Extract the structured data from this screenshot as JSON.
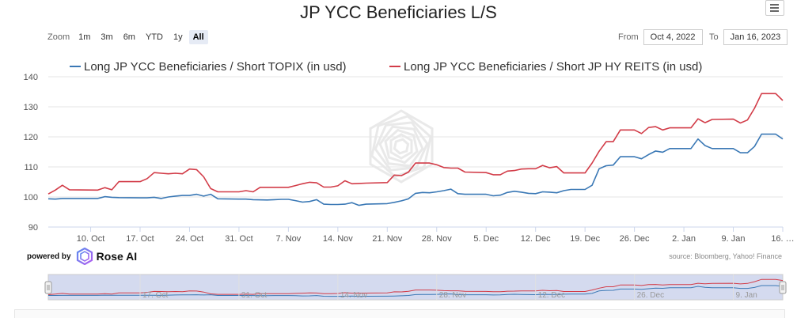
{
  "header": {
    "title": "JP YCC Beneficiaries L/S",
    "menu_icon": "hamburger-menu-icon"
  },
  "zoom": {
    "label": "Zoom",
    "buttons": [
      "1m",
      "3m",
      "6m",
      "YTD",
      "1y",
      "All"
    ],
    "active": "All"
  },
  "range": {
    "from_label": "From",
    "from_value": "Oct 4, 2022",
    "to_label": "To",
    "to_value": "Jan 16, 2023"
  },
  "footer": {
    "powered_by": "powered by",
    "brand": "Rose AI",
    "source": "source: Bloomberg, Yahoo! Finance"
  },
  "colors": {
    "blue": "#3a78b5",
    "red": "#d23c48",
    "grid": "#e6e6e6",
    "navigator_mask": "#ccd3ec"
  },
  "chart_data": {
    "type": "line",
    "title": "JP YCC Beneficiaries L/S",
    "ylim": [
      90,
      140
    ],
    "yticks": [
      90,
      100,
      110,
      120,
      130,
      140
    ],
    "xlim": [
      "2022-10-04",
      "2023-01-16"
    ],
    "xticks": [
      {
        "date": "2022-10-10",
        "label": "10. Oct"
      },
      {
        "date": "2022-10-17",
        "label": "17. Oct"
      },
      {
        "date": "2022-10-24",
        "label": "24. Oct"
      },
      {
        "date": "2022-10-31",
        "label": "31. Oct"
      },
      {
        "date": "2022-11-07",
        "label": "7. Nov"
      },
      {
        "date": "2022-11-14",
        "label": "14. Nov"
      },
      {
        "date": "2022-11-21",
        "label": "21. Nov"
      },
      {
        "date": "2022-11-28",
        "label": "28. Nov"
      },
      {
        "date": "2022-12-05",
        "label": "5. Dec"
      },
      {
        "date": "2022-12-12",
        "label": "12. Dec"
      },
      {
        "date": "2022-12-19",
        "label": "19. Dec"
      },
      {
        "date": "2022-12-26",
        "label": "26. Dec"
      },
      {
        "date": "2023-01-02",
        "label": "2. Jan"
      },
      {
        "date": "2023-01-09",
        "label": "9. Jan"
      },
      {
        "date": "2023-01-16",
        "label": "16. …"
      }
    ],
    "navigator_ticks": [
      "17. Oct",
      "31. Oct",
      "14. Nov",
      "28. Nov",
      "12. Dec",
      "26. Dec",
      "9. Jan"
    ],
    "legend_position": "top-center",
    "series": [
      {
        "name": "Long JP YCC Beneficiaries / Short TOPIX (in usd)",
        "color": "#3a78b5",
        "points": [
          [
            "2022-10-04",
            99.4
          ],
          [
            "2022-10-05",
            99.3
          ],
          [
            "2022-10-06",
            99.5
          ],
          [
            "2022-10-07",
            99.5
          ],
          [
            "2022-10-11",
            99.5
          ],
          [
            "2022-10-12",
            100.1
          ],
          [
            "2022-10-13",
            99.9
          ],
          [
            "2022-10-14",
            99.8
          ],
          [
            "2022-10-17",
            99.7
          ],
          [
            "2022-10-18",
            99.7
          ],
          [
            "2022-10-19",
            99.9
          ],
          [
            "2022-10-20",
            99.5
          ],
          [
            "2022-10-21",
            100.0
          ],
          [
            "2022-10-22",
            100.3
          ],
          [
            "2022-10-23",
            100.5
          ],
          [
            "2022-10-24",
            100.5
          ],
          [
            "2022-10-25",
            100.9
          ],
          [
            "2022-10-26",
            100.3
          ],
          [
            "2022-10-27",
            100.9
          ],
          [
            "2022-10-28",
            99.4
          ],
          [
            "2022-10-31",
            99.3
          ],
          [
            "2022-11-01",
            99.3
          ],
          [
            "2022-11-02",
            99.1
          ],
          [
            "2022-11-04",
            99.0
          ],
          [
            "2022-11-05",
            99.1
          ],
          [
            "2022-11-06",
            99.2
          ],
          [
            "2022-11-07",
            99.2
          ],
          [
            "2022-11-08",
            98.8
          ],
          [
            "2022-11-09",
            98.3
          ],
          [
            "2022-11-10",
            98.5
          ],
          [
            "2022-11-11",
            99.1
          ],
          [
            "2022-11-12",
            97.6
          ],
          [
            "2022-11-13",
            97.5
          ],
          [
            "2022-11-14",
            97.5
          ],
          [
            "2022-11-15",
            97.6
          ],
          [
            "2022-11-16",
            98.1
          ],
          [
            "2022-11-17",
            97.2
          ],
          [
            "2022-11-18",
            97.6
          ],
          [
            "2022-11-21",
            97.8
          ],
          [
            "2022-11-22",
            98.2
          ],
          [
            "2022-11-23",
            98.7
          ],
          [
            "2022-11-24",
            99.4
          ],
          [
            "2022-11-25",
            101.2
          ],
          [
            "2022-11-26",
            101.5
          ],
          [
            "2022-11-27",
            101.4
          ],
          [
            "2022-11-28",
            101.7
          ],
          [
            "2022-11-29",
            102.1
          ],
          [
            "2022-11-30",
            102.6
          ],
          [
            "2022-12-01",
            101.1
          ],
          [
            "2022-12-02",
            100.9
          ],
          [
            "2022-12-05",
            100.9
          ],
          [
            "2022-12-06",
            100.4
          ],
          [
            "2022-12-07",
            100.6
          ],
          [
            "2022-12-08",
            101.5
          ],
          [
            "2022-12-09",
            101.9
          ],
          [
            "2022-12-10",
            101.6
          ],
          [
            "2022-12-11",
            101.2
          ],
          [
            "2022-12-12",
            101.1
          ],
          [
            "2022-12-13",
            101.7
          ],
          [
            "2022-12-14",
            101.6
          ],
          [
            "2022-12-15",
            101.4
          ],
          [
            "2022-12-16",
            102.1
          ],
          [
            "2022-12-17",
            102.5
          ],
          [
            "2022-12-19",
            102.5
          ],
          [
            "2022-12-20",
            103.9
          ],
          [
            "2022-12-21",
            109.4
          ],
          [
            "2022-12-22",
            110.4
          ],
          [
            "2022-12-23",
            110.6
          ],
          [
            "2022-12-24",
            113.4
          ],
          [
            "2022-12-26",
            113.4
          ],
          [
            "2022-12-27",
            112.7
          ],
          [
            "2022-12-28",
            114.1
          ],
          [
            "2022-12-29",
            115.3
          ],
          [
            "2022-12-30",
            114.9
          ],
          [
            "2022-12-31",
            116.1
          ],
          [
            "2023-01-03",
            116.1
          ],
          [
            "2023-01-04",
            119.3
          ],
          [
            "2023-01-05",
            117.1
          ],
          [
            "2023-01-06",
            116.1
          ],
          [
            "2023-01-09",
            116.1
          ],
          [
            "2023-01-10",
            114.7
          ],
          [
            "2023-01-11",
            114.7
          ],
          [
            "2023-01-12",
            116.8
          ],
          [
            "2023-01-13",
            120.9
          ],
          [
            "2023-01-15",
            120.9
          ],
          [
            "2023-01-16",
            119.3
          ]
        ]
      },
      {
        "name": "Long JP YCC Beneficiaries / Short JP HY REITS (in usd)",
        "color": "#d23c48",
        "points": [
          [
            "2022-10-04",
            101.0
          ],
          [
            "2022-10-05",
            102.3
          ],
          [
            "2022-10-06",
            103.9
          ],
          [
            "2022-10-07",
            102.4
          ],
          [
            "2022-10-11",
            102.3
          ],
          [
            "2022-10-12",
            103.1
          ],
          [
            "2022-10-13",
            102.4
          ],
          [
            "2022-10-14",
            105.1
          ],
          [
            "2022-10-17",
            105.1
          ],
          [
            "2022-10-18",
            106.1
          ],
          [
            "2022-10-19",
            108.1
          ],
          [
            "2022-10-20",
            107.9
          ],
          [
            "2022-10-21",
            107.7
          ],
          [
            "2022-10-22",
            107.9
          ],
          [
            "2022-10-23",
            107.7
          ],
          [
            "2022-10-24",
            109.3
          ],
          [
            "2022-10-25",
            109.1
          ],
          [
            "2022-10-26",
            106.7
          ],
          [
            "2022-10-27",
            102.8
          ],
          [
            "2022-10-28",
            101.7
          ],
          [
            "2022-10-31",
            101.7
          ],
          [
            "2022-11-01",
            102.1
          ],
          [
            "2022-11-02",
            101.7
          ],
          [
            "2022-11-03",
            103.2
          ],
          [
            "2022-11-04",
            103.2
          ],
          [
            "2022-11-07",
            103.2
          ],
          [
            "2022-11-08",
            103.8
          ],
          [
            "2022-11-09",
            104.4
          ],
          [
            "2022-11-10",
            104.9
          ],
          [
            "2022-11-11",
            104.7
          ],
          [
            "2022-11-12",
            103.3
          ],
          [
            "2022-11-13",
            103.3
          ],
          [
            "2022-11-14",
            103.7
          ],
          [
            "2022-11-15",
            105.4
          ],
          [
            "2022-11-16",
            104.4
          ],
          [
            "2022-11-17",
            104.5
          ],
          [
            "2022-11-18",
            104.6
          ],
          [
            "2022-11-21",
            104.8
          ],
          [
            "2022-11-22",
            107.3
          ],
          [
            "2022-11-23",
            107.1
          ],
          [
            "2022-11-24",
            108.3
          ],
          [
            "2022-11-25",
            111.3
          ],
          [
            "2022-11-26",
            111.3
          ],
          [
            "2022-11-27",
            111.3
          ],
          [
            "2022-11-28",
            110.7
          ],
          [
            "2022-11-29",
            109.8
          ],
          [
            "2022-11-30",
            109.6
          ],
          [
            "2022-12-01",
            109.6
          ],
          [
            "2022-12-02",
            108.3
          ],
          [
            "2022-12-05",
            108.1
          ],
          [
            "2022-12-06",
            107.4
          ],
          [
            "2022-12-07",
            107.4
          ],
          [
            "2022-12-08",
            108.6
          ],
          [
            "2022-12-09",
            108.8
          ],
          [
            "2022-12-10",
            109.3
          ],
          [
            "2022-12-11",
            109.4
          ],
          [
            "2022-12-12",
            109.4
          ],
          [
            "2022-12-13",
            110.5
          ],
          [
            "2022-12-14",
            109.7
          ],
          [
            "2022-12-15",
            110.1
          ],
          [
            "2022-12-16",
            108.0
          ],
          [
            "2022-12-19",
            108.0
          ],
          [
            "2022-12-20",
            111.3
          ],
          [
            "2022-12-21",
            115.2
          ],
          [
            "2022-12-22",
            118.4
          ],
          [
            "2022-12-23",
            118.4
          ],
          [
            "2022-12-24",
            122.3
          ],
          [
            "2022-12-26",
            122.3
          ],
          [
            "2022-12-27",
            121.1
          ],
          [
            "2022-12-28",
            123.1
          ],
          [
            "2022-12-29",
            123.4
          ],
          [
            "2022-12-30",
            122.3
          ],
          [
            "2022-12-31",
            123.0
          ],
          [
            "2023-01-03",
            123.0
          ],
          [
            "2023-01-04",
            126.0
          ],
          [
            "2023-01-05",
            124.7
          ],
          [
            "2023-01-06",
            125.8
          ],
          [
            "2023-01-09",
            125.9
          ],
          [
            "2023-01-10",
            124.6
          ],
          [
            "2023-01-11",
            125.6
          ],
          [
            "2023-01-12",
            129.5
          ],
          [
            "2023-01-13",
            134.4
          ],
          [
            "2023-01-15",
            134.4
          ],
          [
            "2023-01-16",
            132.1
          ]
        ]
      }
    ]
  }
}
